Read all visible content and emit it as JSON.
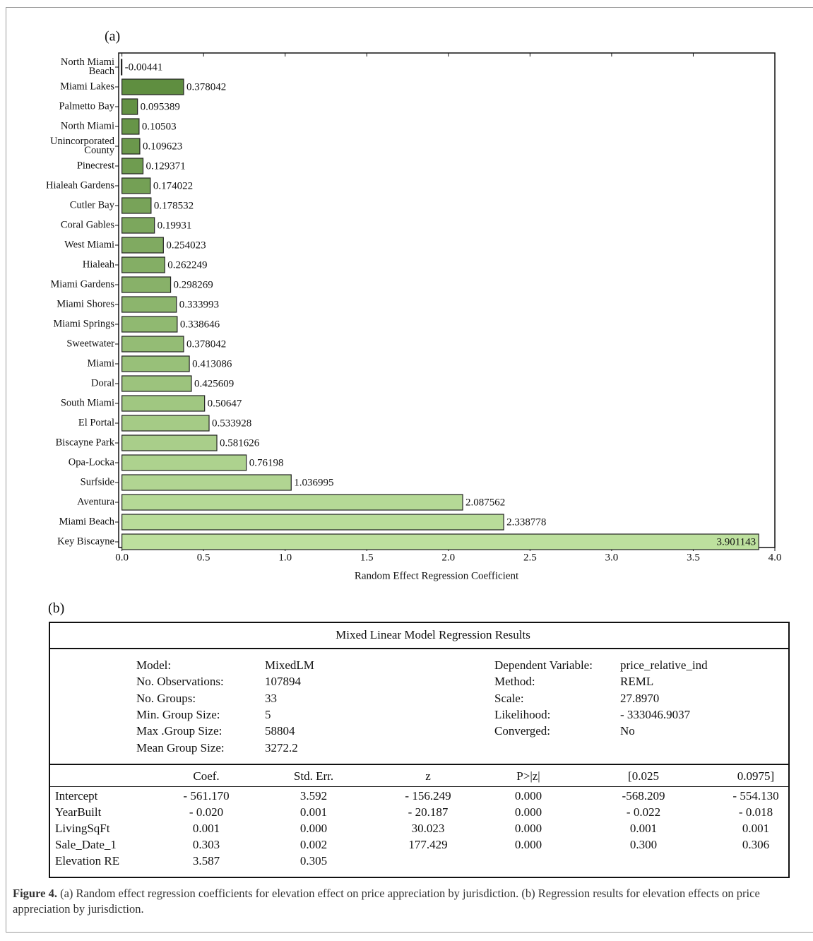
{
  "chart_data": {
    "type": "barh",
    "panel_label": "(a)",
    "x_label": "Random Effect Regression Coefficient",
    "categories": [
      "North Miami Beach",
      "Miami Lakes",
      "Palmetto Bay",
      "North Miami",
      "Unincorporated County",
      "Pinecrest",
      "Hialeah Gardens",
      "Cutler Bay",
      "Coral Gables",
      "West Miami",
      "Hialeah",
      "Miami Gardens",
      "Miami Shores",
      "Miami Springs",
      "Sweetwater",
      "Miami",
      "Doral",
      "South Miami",
      "El Portal",
      "Biscayne Park",
      "Opa-Locka",
      "Surfside",
      "Aventura",
      "Miami Beach",
      "Key Biscayne"
    ],
    "values": [
      -0.00441,
      0.378042,
      0.095389,
      0.10503,
      0.109623,
      0.129371,
      0.174022,
      0.178532,
      0.19931,
      0.254023,
      0.262249,
      0.298269,
      0.333993,
      0.338646,
      0.378042,
      0.413086,
      0.425609,
      0.50647,
      0.533928,
      0.581626,
      0.76198,
      1.036995,
      2.087562,
      2.338778,
      3.901143
    ],
    "color_range": [
      "#5b8a3c",
      "#bde09e"
    ],
    "xlim": [
      -0.02,
      4.0
    ],
    "xticks": [
      {
        "value": 0,
        "label": "0.0"
      },
      0.5,
      {
        "value": 1,
        "label": "1.0"
      },
      1.5,
      {
        "value": 2,
        "label": "2.0"
      },
      2.5,
      {
        "value": 3,
        "label": "3.0"
      },
      3.5,
      {
        "value": 4,
        "label": "4.0"
      }
    ]
  },
  "panel_b": {
    "label": "(b)",
    "title": "Mixed Linear Model Regression Results",
    "info_left": [
      [
        "Model:",
        "MixedLM"
      ],
      [
        "No. Observations:",
        "107894"
      ],
      [
        "No. Groups:",
        "33"
      ],
      [
        "Min. Group Size:",
        "5"
      ],
      [
        "Max .Group Size:",
        "58804"
      ],
      [
        "Mean Group Size:",
        "3272.2"
      ]
    ],
    "info_right": [
      [
        "Dependent Variable:",
        "price_relative_ind"
      ],
      [
        "Method:",
        "REML"
      ],
      [
        "Scale:",
        "27.8970"
      ],
      [
        "Likelihood:",
        "- 333046.9037"
      ],
      [
        "Converged:",
        "No"
      ]
    ],
    "headers": [
      "Coef.",
      "Std. Err.",
      "z",
      "P>|z|",
      "[0.025",
      "0.0975]"
    ],
    "rows": [
      [
        "Intercept",
        "- 561.170",
        "3.592",
        "- 156.249",
        "0.000",
        "-568.209",
        "- 554.130"
      ],
      [
        "YearBuilt",
        "- 0.020",
        "0.001",
        "- 20.187",
        "0.000",
        "- 0.022",
        "- 0.018"
      ],
      [
        "LivingSqFt",
        "0.001",
        "0.000",
        "30.023",
        "0.000",
        "0.001",
        "0.001"
      ],
      [
        "Sale_Date_1",
        "0.303",
        "0.002",
        "177.429",
        "0.000",
        "0.300",
        "0.306"
      ],
      [
        "Elevation RE",
        "3.587",
        "0.305"
      ]
    ]
  },
  "caption": {
    "label": "Figure 4.",
    "text": "(a) Random effect regression coefficients for elevation effect on price appreciation by jurisdiction. (b) Regression results for elevation effects on price appreciation by jurisdiction."
  }
}
